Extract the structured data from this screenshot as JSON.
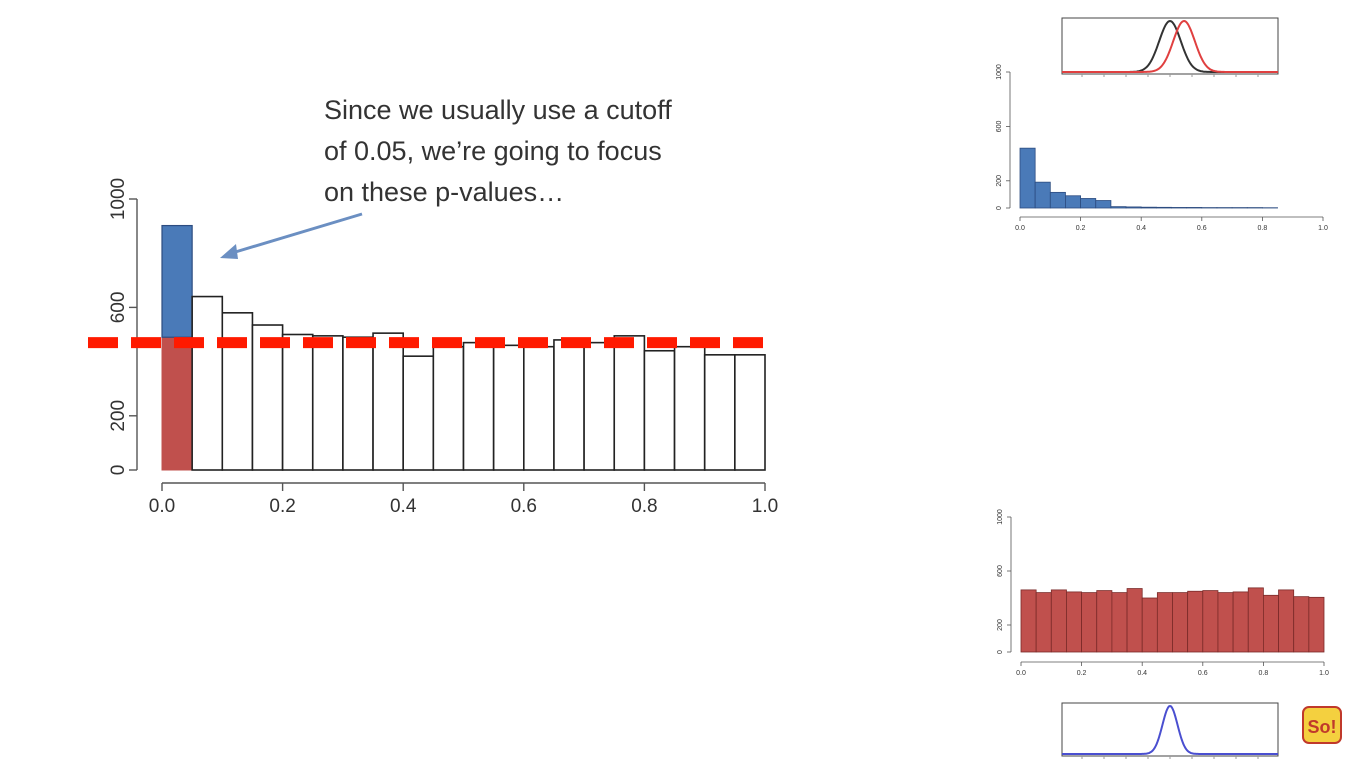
{
  "annotation": {
    "lines": [
      "Since we usually use a cutoff",
      "of 0.05, we’re going to focus",
      "on these p-values…"
    ]
  },
  "logo": {
    "text": "So!"
  },
  "colors": {
    "blue": "#4a7ab8",
    "red_fill": "#c0504d",
    "cutoff_line": "#ff1a00",
    "curve_black": "#333333",
    "curve_red": "#e04040",
    "curve_blue": "#4a4fd0"
  },
  "chart_data": [
    {
      "id": "main",
      "type": "bar",
      "bin_edges": [
        0.0,
        0.05,
        0.1,
        0.15,
        0.2,
        0.25,
        0.3,
        0.35,
        0.4,
        0.45,
        0.5,
        0.55,
        0.6,
        0.65,
        0.7,
        0.75,
        0.8,
        0.85,
        0.9,
        0.95,
        1.0
      ],
      "series": [
        {
          "values": [
            902,
            640,
            580,
            535,
            500,
            495,
            490,
            505,
            420,
            455,
            470,
            460,
            455,
            480,
            470,
            495,
            440,
            455,
            425,
            425
          ]
        }
      ],
      "highlight": {
        "bin_index": 0,
        "split_at": 490
      },
      "reference_line": {
        "y": 470,
        "style": "dashed"
      },
      "xticks": [
        "0.0",
        "0.2",
        "0.4",
        "0.6",
        "0.8",
        "1.0"
      ],
      "yticks": [
        "0",
        "200",
        "600",
        "1000"
      ],
      "xlim": [
        0,
        1
      ],
      "ylim": [
        0,
        1000
      ],
      "grid": false
    },
    {
      "id": "top-right",
      "type": "bar",
      "bin_edges": [
        0.0,
        0.05,
        0.1,
        0.15,
        0.2,
        0.25,
        0.3,
        0.35,
        0.4,
        0.45,
        0.5,
        0.55,
        0.6,
        0.65,
        0.7,
        0.75,
        0.8,
        0.85,
        0.9,
        0.95,
        1.0
      ],
      "series": [
        {
          "values": [
            440,
            190,
            115,
            90,
            70,
            55,
            10,
            8,
            6,
            5,
            4,
            4,
            3,
            3,
            3,
            3,
            2,
            0,
            0,
            0
          ]
        }
      ],
      "xticks": [
        "0.0",
        "0.2",
        "0.4",
        "0.6",
        "0.8",
        "1.0"
      ],
      "yticks": [
        "0",
        "200",
        "600",
        "1000"
      ],
      "xlim": [
        0,
        1
      ],
      "ylim": [
        0,
        1000
      ]
    },
    {
      "id": "bottom-right",
      "type": "bar",
      "bin_edges": [
        0.0,
        0.05,
        0.1,
        0.15,
        0.2,
        0.25,
        0.3,
        0.35,
        0.4,
        0.45,
        0.5,
        0.55,
        0.6,
        0.65,
        0.7,
        0.75,
        0.8,
        0.85,
        0.9,
        0.95,
        1.0
      ],
      "series": [
        {
          "values": [
            460,
            440,
            460,
            445,
            440,
            455,
            440,
            470,
            400,
            440,
            440,
            450,
            455,
            440,
            445,
            475,
            420,
            460,
            410,
            405
          ]
        }
      ],
      "xticks": [
        "0.0",
        "0.2",
        "0.4",
        "0.6",
        "0.8",
        "1.0"
      ],
      "yticks": [
        "0",
        "200",
        "600",
        "1000"
      ],
      "xlim": [
        0,
        1
      ],
      "ylim": [
        0,
        1000
      ]
    },
    {
      "id": "top-curves",
      "type": "line",
      "series": [
        {
          "color": "black",
          "mean": 0.5,
          "sd": 0.1
        },
        {
          "color": "red",
          "mean": 0.63,
          "sd": 0.1
        }
      ],
      "xlim": [
        -0.5,
        1.5
      ]
    },
    {
      "id": "bottom-curve",
      "type": "line",
      "series": [
        {
          "color": "blue",
          "mean": 0.5,
          "sd": 0.07
        }
      ],
      "xlim": [
        -0.5,
        1.5
      ]
    }
  ]
}
